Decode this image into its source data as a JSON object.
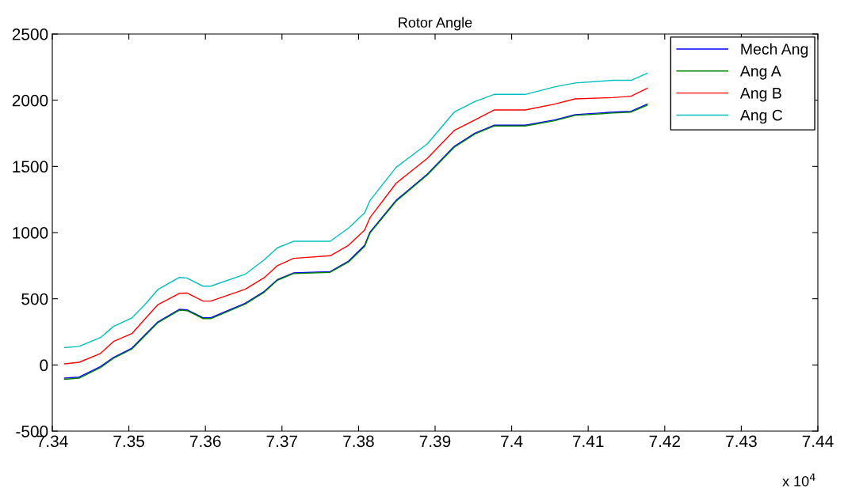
{
  "chart_data": {
    "type": "line",
    "title": "Rotor Angle",
    "x": [
      7.3416,
      7.3435,
      7.3463,
      7.348,
      7.3504,
      7.3521,
      7.3538,
      7.3566,
      7.3576,
      7.3597,
      7.3607,
      7.3652,
      7.3677,
      7.3694,
      7.3715,
      7.3763,
      7.3787,
      7.3808,
      7.3815,
      7.3849,
      7.389,
      7.3925,
      7.3952,
      7.3977,
      7.4018,
      7.4056,
      7.4083,
      7.4132,
      7.4156,
      7.4177
    ],
    "series": [
      {
        "name": "Mech Ang",
        "color": "#0000ff",
        "values": [
          -100,
          -92,
          -12,
          57,
          127,
          227,
          326,
          420,
          416,
          356,
          356,
          466,
          556,
          645,
          695,
          705,
          785,
          904,
          1004,
          1243,
          1442,
          1651,
          1751,
          1811,
          1811,
          1851,
          1891,
          1910,
          1916,
          1970
        ]
      },
      {
        "name": "Ang A",
        "color": "#008000",
        "values": [
          -108,
          -100,
          -20,
          50,
          120,
          220,
          320,
          414,
          410,
          350,
          350,
          460,
          550,
          640,
          690,
          700,
          778,
          896,
          996,
          1236,
          1436,
          1644,
          1745,
          1805,
          1805,
          1845,
          1885,
          1903,
          1910,
          1962
        ]
      },
      {
        "name": "Ang B",
        "color": "#ff0000",
        "values": [
          8,
          20,
          87,
          177,
          237,
          347,
          456,
          541,
          543,
          482,
          482,
          572,
          660,
          750,
          805,
          825,
          904,
          1020,
          1113,
          1372,
          1562,
          1771,
          1851,
          1926,
          1926,
          1970,
          2010,
          2020,
          2030,
          2090
        ]
      },
      {
        "name": "Ang C",
        "color": "#00bfbf",
        "values": [
          131,
          140,
          207,
          291,
          356,
          456,
          570,
          661,
          656,
          595,
          595,
          685,
          795,
          885,
          934,
          934,
          1034,
          1150,
          1243,
          1492,
          1671,
          1910,
          1990,
          2044,
          2044,
          2100,
          2130,
          2150,
          2150,
          2203
        ]
      }
    ],
    "xlim": [
      7.34,
      7.44
    ],
    "xticks": [
      7.34,
      7.35,
      7.36,
      7.37,
      7.38,
      7.39,
      7.4,
      7.41,
      7.42,
      7.43,
      7.44
    ],
    "ylim": [
      -500,
      2500
    ],
    "yticks": [
      -500,
      0,
      500,
      1000,
      1500,
      2000,
      2500
    ],
    "annotations": [
      "x 10$^{4}$"
    ],
    "legend": "top right",
    "grid": false,
    "marker": "none",
    "line_style": "solid"
  }
}
